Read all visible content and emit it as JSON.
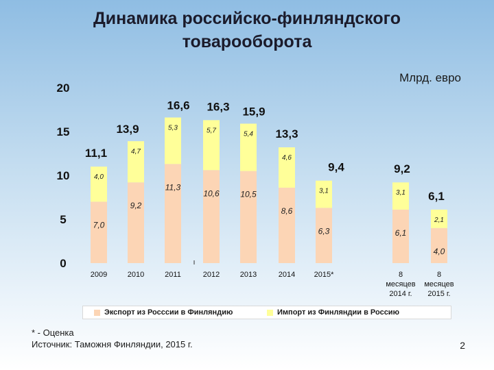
{
  "slide": {
    "title_line1": "Динамика российско-финляндского",
    "title_line2": "товарооборота",
    "unit": "Млрд. евро",
    "footnote": "* - Оценка",
    "source": "Источник: Таможня Финляндии, 2015 г.",
    "page_number": "2"
  },
  "chart_data": {
    "type": "bar",
    "stacked": true,
    "categories": [
      "2009",
      "2010",
      "2011",
      "2012",
      "2013",
      "2014",
      "2015*",
      "8 месяцев 2014 г.",
      "8 месяцев 2015 г."
    ],
    "category_label_lines": [
      [
        "2009"
      ],
      [
        "2010"
      ],
      [
        "2011"
      ],
      [
        "2012"
      ],
      [
        "2013"
      ],
      [
        "2014"
      ],
      [
        "2015*"
      ],
      [
        "8",
        "месяцев",
        "2014 г."
      ],
      [
        "8",
        "месяцев",
        "2015 г."
      ]
    ],
    "series": [
      {
        "name": "Экспорт из Россcии в Финляндию",
        "values": [
          7.0,
          9.2,
          11.3,
          10.6,
          10.5,
          8.6,
          6.3,
          6.1,
          4.0
        ],
        "labels": [
          "7,0",
          "9,2",
          "11,3",
          "10,6",
          "10,5",
          "8,6",
          "6,3",
          "6,1",
          "4,0"
        ],
        "color": "#fcd5b5"
      },
      {
        "name": "Импорт из Финляндии в Россию",
        "values": [
          4.0,
          4.7,
          5.3,
          5.7,
          5.4,
          4.6,
          3.1,
          3.1,
          2.1
        ],
        "labels": [
          "4,0",
          "4,7",
          "5,3",
          "5,7",
          "5,4",
          "4,6",
          "3,1",
          "3,1",
          "2,1"
        ],
        "color": "#ffff99"
      }
    ],
    "totals": [
      11.1,
      13.9,
      16.6,
      16.3,
      15.9,
      13.3,
      9.4,
      9.2,
      6.1
    ],
    "total_labels": [
      "11,1",
      "13,9",
      "16,6",
      "16,3",
      "15,9",
      "13,3",
      "9,4",
      "9,2",
      "6,1"
    ],
    "ylim": [
      0,
      20
    ],
    "yticks": [
      "0",
      "5",
      "10",
      "15",
      "20"
    ],
    "grid": false,
    "legend_position": "bottom"
  }
}
